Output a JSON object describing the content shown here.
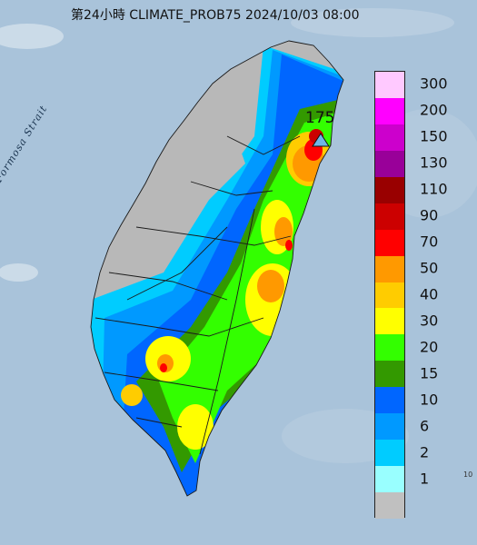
{
  "header": {
    "title": "第24小時  CLIMATE_PROB75 2024/10/03 08:00"
  },
  "map": {
    "sea_label": "Formosa Strait",
    "max_label": "175",
    "corner_mark": "10",
    "colors": {
      "sea": "#a9c3da",
      "land_nodata": "#b8b8b8",
      "boundary": "#1a1a1a",
      "marker": "#6fb6e6"
    }
  },
  "legend": {
    "entries": [
      {
        "label": "300",
        "color": "#ffc9ff"
      },
      {
        "label": "200",
        "color": "#ff00ff"
      },
      {
        "label": "150",
        "color": "#cc00cc"
      },
      {
        "label": "130",
        "color": "#990099"
      },
      {
        "label": "110",
        "color": "#990000"
      },
      {
        "label": "90",
        "color": "#cc0000"
      },
      {
        "label": "70",
        "color": "#ff0000"
      },
      {
        "label": "50",
        "color": "#ff9900"
      },
      {
        "label": "40",
        "color": "#ffcc00"
      },
      {
        "label": "30",
        "color": "#ffff00"
      },
      {
        "label": "20",
        "color": "#33ff00"
      },
      {
        "label": "15",
        "color": "#339900"
      },
      {
        "label": "10",
        "color": "#0066ff"
      },
      {
        "label": "6",
        "color": "#0099ff"
      },
      {
        "label": "2",
        "color": "#00ccff"
      },
      {
        "label": "1",
        "color": "#99ffff"
      },
      {
        "label": "",
        "color": "#c0c0c0"
      }
    ]
  }
}
